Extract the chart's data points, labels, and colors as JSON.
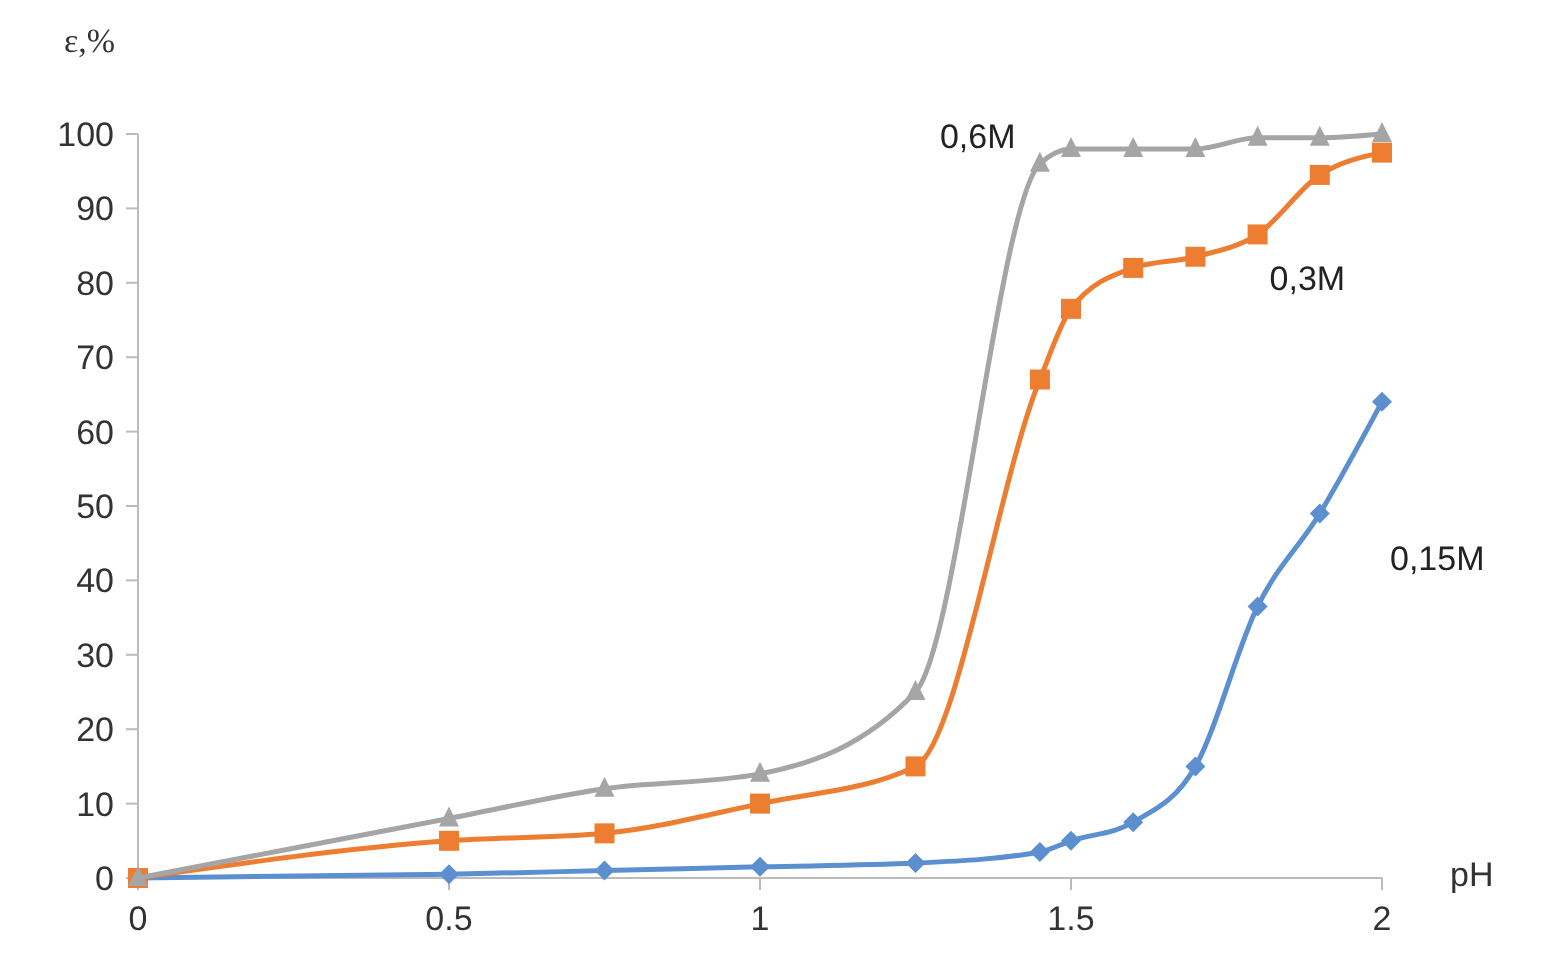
{
  "chart_data": {
    "type": "line",
    "xlabel": "pH",
    "ylabel": "ε,%",
    "x": [
      0,
      0.5,
      0.75,
      1,
      1.25,
      1.45,
      1.5,
      1.6,
      1.7,
      1.8,
      1.9,
      2
    ],
    "series": [
      {
        "name": "0,15M",
        "color": "#5b8fd0",
        "marker": "diamond",
        "values": [
          0,
          0.5,
          1,
          1.5,
          2,
          3.5,
          5,
          7.5,
          15,
          36.5,
          49,
          64
        ]
      },
      {
        "name": "0,3M",
        "color": "#ed7d31",
        "marker": "square",
        "values": [
          0,
          5,
          6,
          10,
          15,
          67,
          76.5,
          82,
          83.5,
          86.5,
          94.5,
          97.5
        ]
      },
      {
        "name": "0,6M",
        "color": "#a5a5a5",
        "marker": "triangle",
        "values": [
          0,
          8,
          12,
          14,
          25,
          96,
          98,
          98,
          98,
          99.5,
          99.5,
          100
        ]
      }
    ],
    "xlim": [
      0,
      2
    ],
    "xticks": [
      0,
      0.5,
      1,
      1.5,
      2
    ],
    "ylim": [
      0,
      100
    ],
    "yticks": [
      0,
      10,
      20,
      30,
      40,
      50,
      60,
      70,
      80,
      90,
      100
    ],
    "grid": false
  }
}
